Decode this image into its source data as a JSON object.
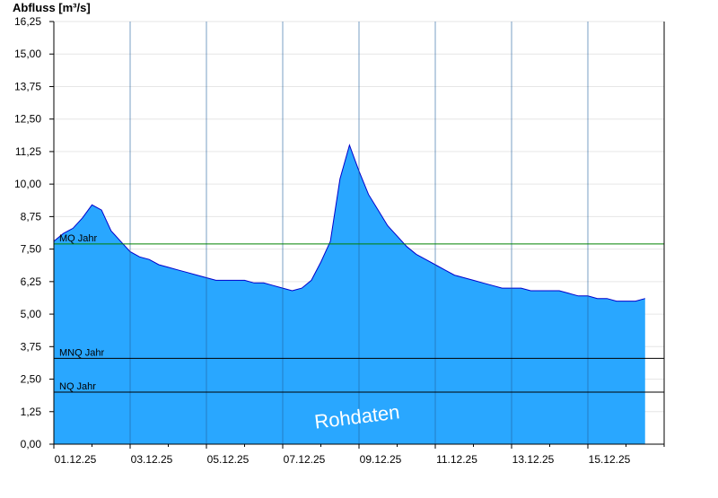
{
  "chart_data": {
    "type": "area",
    "title": "",
    "xlabel": "",
    "ylabel": "Abfluss [m³/s]",
    "ylim": [
      0,
      16.25
    ],
    "xlim": [
      "2025-12-01T00:00",
      "2025-12-17T00:00"
    ],
    "y_ticks": [
      "0,00",
      "1,25",
      "2,50",
      "3,75",
      "5,00",
      "6,25",
      "7,50",
      "8,75",
      "10,00",
      "11,25",
      "12,50",
      "13,75",
      "15,00",
      "16,25"
    ],
    "x_ticks": [
      {
        "date": "2025-12-01",
        "label": "01.12.25"
      },
      {
        "date": "2025-12-03",
        "label": "03.12.25"
      },
      {
        "date": "2025-12-05",
        "label": "05.12.25"
      },
      {
        "date": "2025-12-07",
        "label": "07.12.25"
      },
      {
        "date": "2025-12-09",
        "label": "09.12.25"
      },
      {
        "date": "2025-12-11",
        "label": "11.12.25"
      },
      {
        "date": "2025-12-13",
        "label": "13.12.25"
      },
      {
        "date": "2025-12-15",
        "label": "15.12.25"
      }
    ],
    "grid": true,
    "reference_lines": [
      {
        "name": "MQ Jahr",
        "value": 7.7,
        "color": "#008000"
      },
      {
        "name": "MNQ Jahr",
        "value": 3.3,
        "color": "#000000"
      },
      {
        "name": "NQ Jahr",
        "value": 2.0,
        "color": "#000000"
      }
    ],
    "watermark": "Rohdaten",
    "colors": {
      "fill": "#29a7ff",
      "line": "#0000cc"
    },
    "series": [
      {
        "x": [
          "2025-12-01T00:00",
          "2025-12-01T06:00",
          "2025-12-01T12:00",
          "2025-12-01T18:00",
          "2025-12-02T00:00",
          "2025-12-02T06:00",
          "2025-12-02T12:00",
          "2025-12-02T18:00",
          "2025-12-03T00:00",
          "2025-12-03T06:00",
          "2025-12-03T12:00",
          "2025-12-03T18:00",
          "2025-12-04T00:00",
          "2025-12-04T06:00",
          "2025-12-04T12:00",
          "2025-12-04T18:00",
          "2025-12-05T00:00",
          "2025-12-05T06:00",
          "2025-12-05T12:00",
          "2025-12-05T18:00",
          "2025-12-06T00:00",
          "2025-12-06T06:00",
          "2025-12-06T12:00",
          "2025-12-06T18:00",
          "2025-12-07T00:00",
          "2025-12-07T06:00",
          "2025-12-07T12:00",
          "2025-12-07T18:00",
          "2025-12-08T00:00",
          "2025-12-08T06:00",
          "2025-12-08T12:00",
          "2025-12-08T18:00",
          "2025-12-09T00:00",
          "2025-12-09T06:00",
          "2025-12-09T12:00",
          "2025-12-09T18:00",
          "2025-12-10T00:00",
          "2025-12-10T06:00",
          "2025-12-10T12:00",
          "2025-12-10T18:00",
          "2025-12-11T00:00",
          "2025-12-11T06:00",
          "2025-12-11T12:00",
          "2025-12-11T18:00",
          "2025-12-12T00:00",
          "2025-12-12T06:00",
          "2025-12-12T12:00",
          "2025-12-12T18:00",
          "2025-12-13T00:00",
          "2025-12-13T06:00",
          "2025-12-13T12:00",
          "2025-12-13T18:00",
          "2025-12-14T00:00",
          "2025-12-14T06:00",
          "2025-12-14T12:00",
          "2025-12-14T18:00",
          "2025-12-15T00:00",
          "2025-12-15T06:00",
          "2025-12-15T12:00",
          "2025-12-15T18:00",
          "2025-12-16T00:00",
          "2025-12-16T06:00",
          "2025-12-16T12:00"
        ],
        "values": [
          7.8,
          8.1,
          8.3,
          8.7,
          9.2,
          9.0,
          8.2,
          7.8,
          7.4,
          7.2,
          7.1,
          6.9,
          6.8,
          6.7,
          6.6,
          6.5,
          6.4,
          6.3,
          6.3,
          6.3,
          6.3,
          6.2,
          6.2,
          6.1,
          6.0,
          5.9,
          6.0,
          6.3,
          7.0,
          7.8,
          10.2,
          11.5,
          10.5,
          9.6,
          9.0,
          8.4,
          8.0,
          7.6,
          7.3,
          7.1,
          6.9,
          6.7,
          6.5,
          6.4,
          6.3,
          6.2,
          6.1,
          6.0,
          6.0,
          6.0,
          5.9,
          5.9,
          5.9,
          5.9,
          5.8,
          5.7,
          5.7,
          5.6,
          5.6,
          5.5,
          5.5,
          5.5,
          5.6
        ]
      }
    ]
  }
}
